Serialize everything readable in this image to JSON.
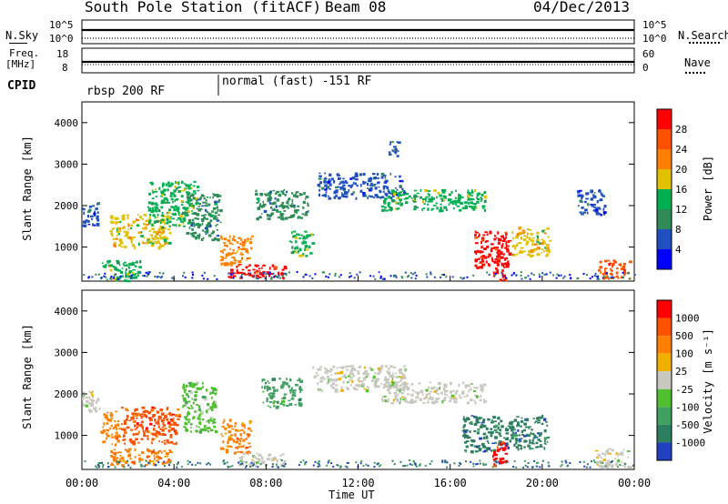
{
  "header": {
    "station": "South Pole Station (fitACF)",
    "beam": "Beam 08",
    "date": "04/Dec/2013"
  },
  "top_panels": {
    "nsky_label": "N.Sky",
    "nsky_ticks": [
      "10^5",
      "10^0"
    ],
    "nsearch_label": "N.Search",
    "nsearch_ticks": [
      "10^5",
      "10^0"
    ],
    "freq_label_1": "Freq.",
    "freq_label_2": "[MHz]",
    "freq_ticks": [
      "18",
      "8"
    ],
    "nave_label": "Nave",
    "nave_ticks": [
      "60",
      "0"
    ],
    "cpid_label": "CPID",
    "cpid_segments": [
      {
        "label": "rbsp 200 RF",
        "start_hour": 0,
        "end_hour": 6
      },
      {
        "label": "normal (fast) -151 RF",
        "start_hour": 6,
        "end_hour": 24
      }
    ]
  },
  "colors": {
    "power": [
      "#0000ff",
      "#2050c0",
      "#2e8b57",
      "#00b050",
      "#e0c000",
      "#ff8000",
      "#ff5000",
      "#ff0000"
    ],
    "velocity": [
      "#2040c0",
      "#2e7f5f",
      "#40a060",
      "#50c030",
      "#c8c8c0",
      "#f0b000",
      "#ff8000",
      "#ff5000",
      "#ff0000"
    ],
    "ground_scatter": "#c0c0b8"
  },
  "chart_data": [
    {
      "type": "heatmap",
      "panel": "power",
      "ylabel": "Slant Range [km]",
      "ylim": [
        180,
        4500
      ],
      "y_ticks": [
        "1000",
        "2000",
        "3000",
        "4000"
      ],
      "xlim": [
        0,
        24
      ],
      "colorbar_label": "Power [dB]",
      "colorbar_ticks": [
        "4",
        "8",
        "12",
        "16",
        "20",
        "24",
        "28"
      ],
      "regions": [
        {
          "x": [
            0.0,
            0.7
          ],
          "y": [
            1500,
            2100
          ],
          "level": 1
        },
        {
          "x": [
            0.8,
            2.5
          ],
          "y": [
            200,
            700
          ],
          "level": 3
        },
        {
          "x": [
            1.2,
            3.8
          ],
          "y": [
            1000,
            1800
          ],
          "level": 4
        },
        {
          "x": [
            2.8,
            5.0
          ],
          "y": [
            1500,
            2600
          ],
          "level": 3
        },
        {
          "x": [
            4.5,
            6.0
          ],
          "y": [
            1200,
            2300
          ],
          "level": 2
        },
        {
          "x": [
            6.0,
            7.4
          ],
          "y": [
            600,
            1300
          ],
          "level": 5
        },
        {
          "x": [
            6.3,
            8.8
          ],
          "y": [
            280,
            600
          ],
          "level": 7
        },
        {
          "x": [
            7.5,
            9.8
          ],
          "y": [
            1700,
            2400
          ],
          "level": 2
        },
        {
          "x": [
            9.0,
            10.0
          ],
          "y": [
            800,
            1400
          ],
          "level": 3
        },
        {
          "x": [
            10.2,
            14.0
          ],
          "y": [
            2200,
            2800
          ],
          "level": 1
        },
        {
          "x": [
            13.0,
            17.5
          ],
          "y": [
            1900,
            2400
          ],
          "level": 3
        },
        {
          "x": [
            13.3,
            13.8
          ],
          "y": [
            3200,
            3600
          ],
          "level": 1
        },
        {
          "x": [
            17.0,
            18.6
          ],
          "y": [
            500,
            1400
          ],
          "level": 7
        },
        {
          "x": [
            17.8,
            18.4
          ],
          "y": [
            200,
            800
          ],
          "level": 7
        },
        {
          "x": [
            18.6,
            20.3
          ],
          "y": [
            800,
            1500
          ],
          "level": 4
        },
        {
          "x": [
            21.5,
            22.7
          ],
          "y": [
            1800,
            2400
          ],
          "level": 1
        },
        {
          "x": [
            22.4,
            23.8
          ],
          "y": [
            250,
            700
          ],
          "level": 6
        }
      ]
    },
    {
      "type": "heatmap",
      "panel": "velocity",
      "ylabel": "Slant Range [km]",
      "ylim": [
        180,
        4500
      ],
      "y_ticks": [
        "1000",
        "2000",
        "3000",
        "4000"
      ],
      "xlim": [
        0,
        24
      ],
      "xlabel": "Time UT",
      "x_ticks": [
        "00:00",
        "04:00",
        "08:00",
        "12:00",
        "16:00",
        "20:00",
        "00:00"
      ],
      "colorbar_label": "Velocity [m s⁻¹]",
      "colorbar_ticks": [
        "1000",
        "500",
        "100",
        "25",
        "-25",
        "-100",
        "-500",
        "-1000"
      ],
      "regions": [
        {
          "x": [
            0.0,
            0.8
          ],
          "y": [
            1600,
            2100
          ],
          "level": 4
        },
        {
          "x": [
            0.8,
            1.6
          ],
          "y": [
            800,
            1600
          ],
          "level": 6
        },
        {
          "x": [
            1.2,
            3.8
          ],
          "y": [
            300,
            700
          ],
          "level": 6
        },
        {
          "x": [
            1.7,
            4.2
          ],
          "y": [
            800,
            1700
          ],
          "level": 7
        },
        {
          "x": [
            4.3,
            5.8
          ],
          "y": [
            1100,
            2300
          ],
          "level": 3
        },
        {
          "x": [
            6.0,
            7.3
          ],
          "y": [
            600,
            1400
          ],
          "level": 6
        },
        {
          "x": [
            6.8,
            8.8
          ],
          "y": [
            280,
            600
          ],
          "level": 4
        },
        {
          "x": [
            7.8,
            9.5
          ],
          "y": [
            1700,
            2400
          ],
          "level": 2
        },
        {
          "x": [
            10.0,
            14.0
          ],
          "y": [
            2100,
            2700
          ],
          "level": 4
        },
        {
          "x": [
            13.0,
            17.5
          ],
          "y": [
            1800,
            2300
          ],
          "level": 4
        },
        {
          "x": [
            16.5,
            18.2
          ],
          "y": [
            600,
            1500
          ],
          "level": 1
        },
        {
          "x": [
            17.8,
            18.4
          ],
          "y": [
            300,
            900
          ],
          "level": 8
        },
        {
          "x": [
            18.3,
            20.2
          ],
          "y": [
            700,
            1500
          ],
          "level": 1
        },
        {
          "x": [
            22.3,
            23.8
          ],
          "y": [
            250,
            700
          ],
          "level": 4
        }
      ]
    }
  ]
}
